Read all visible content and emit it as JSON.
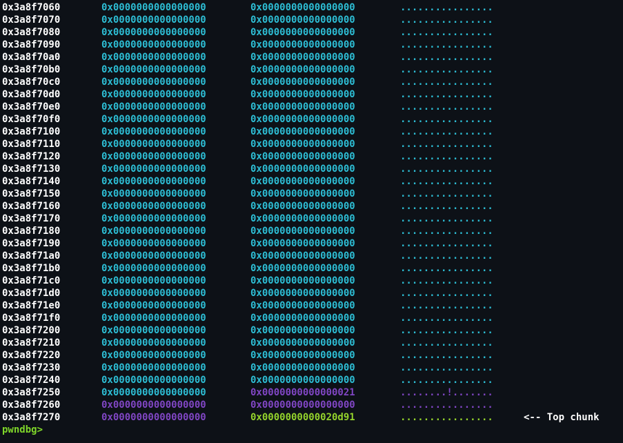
{
  "colors": {
    "background": "#0d1117",
    "address": "#ffffff",
    "cyan": "#2dbdd4",
    "purple": "#8046c4",
    "green": "#94d32c",
    "prompt": "#7fd62a"
  },
  "rows": [
    {
      "addr": "0x3a8f7060",
      "q1": "0x0000000000000000",
      "q2": "0x0000000000000000",
      "ascii": "................",
      "q1c": "cyan",
      "q2c": "cyan",
      "ac": "cyan"
    },
    {
      "addr": "0x3a8f7070",
      "q1": "0x0000000000000000",
      "q2": "0x0000000000000000",
      "ascii": "................",
      "q1c": "cyan",
      "q2c": "cyan",
      "ac": "cyan"
    },
    {
      "addr": "0x3a8f7080",
      "q1": "0x0000000000000000",
      "q2": "0x0000000000000000",
      "ascii": "................",
      "q1c": "cyan",
      "q2c": "cyan",
      "ac": "cyan"
    },
    {
      "addr": "0x3a8f7090",
      "q1": "0x0000000000000000",
      "q2": "0x0000000000000000",
      "ascii": "................",
      "q1c": "cyan",
      "q2c": "cyan",
      "ac": "cyan"
    },
    {
      "addr": "0x3a8f70a0",
      "q1": "0x0000000000000000",
      "q2": "0x0000000000000000",
      "ascii": "................",
      "q1c": "cyan",
      "q2c": "cyan",
      "ac": "cyan"
    },
    {
      "addr": "0x3a8f70b0",
      "q1": "0x0000000000000000",
      "q2": "0x0000000000000000",
      "ascii": "................",
      "q1c": "cyan",
      "q2c": "cyan",
      "ac": "cyan"
    },
    {
      "addr": "0x3a8f70c0",
      "q1": "0x0000000000000000",
      "q2": "0x0000000000000000",
      "ascii": "................",
      "q1c": "cyan",
      "q2c": "cyan",
      "ac": "cyan"
    },
    {
      "addr": "0x3a8f70d0",
      "q1": "0x0000000000000000",
      "q2": "0x0000000000000000",
      "ascii": "................",
      "q1c": "cyan",
      "q2c": "cyan",
      "ac": "cyan"
    },
    {
      "addr": "0x3a8f70e0",
      "q1": "0x0000000000000000",
      "q2": "0x0000000000000000",
      "ascii": "................",
      "q1c": "cyan",
      "q2c": "cyan",
      "ac": "cyan"
    },
    {
      "addr": "0x3a8f70f0",
      "q1": "0x0000000000000000",
      "q2": "0x0000000000000000",
      "ascii": "................",
      "q1c": "cyan",
      "q2c": "cyan",
      "ac": "cyan"
    },
    {
      "addr": "0x3a8f7100",
      "q1": "0x0000000000000000",
      "q2": "0x0000000000000000",
      "ascii": "................",
      "q1c": "cyan",
      "q2c": "cyan",
      "ac": "cyan"
    },
    {
      "addr": "0x3a8f7110",
      "q1": "0x0000000000000000",
      "q2": "0x0000000000000000",
      "ascii": "................",
      "q1c": "cyan",
      "q2c": "cyan",
      "ac": "cyan"
    },
    {
      "addr": "0x3a8f7120",
      "q1": "0x0000000000000000",
      "q2": "0x0000000000000000",
      "ascii": "................",
      "q1c": "cyan",
      "q2c": "cyan",
      "ac": "cyan"
    },
    {
      "addr": "0x3a8f7130",
      "q1": "0x0000000000000000",
      "q2": "0x0000000000000000",
      "ascii": "................",
      "q1c": "cyan",
      "q2c": "cyan",
      "ac": "cyan"
    },
    {
      "addr": "0x3a8f7140",
      "q1": "0x0000000000000000",
      "q2": "0x0000000000000000",
      "ascii": "................",
      "q1c": "cyan",
      "q2c": "cyan",
      "ac": "cyan"
    },
    {
      "addr": "0x3a8f7150",
      "q1": "0x0000000000000000",
      "q2": "0x0000000000000000",
      "ascii": "................",
      "q1c": "cyan",
      "q2c": "cyan",
      "ac": "cyan"
    },
    {
      "addr": "0x3a8f7160",
      "q1": "0x0000000000000000",
      "q2": "0x0000000000000000",
      "ascii": "................",
      "q1c": "cyan",
      "q2c": "cyan",
      "ac": "cyan"
    },
    {
      "addr": "0x3a8f7170",
      "q1": "0x0000000000000000",
      "q2": "0x0000000000000000",
      "ascii": "................",
      "q1c": "cyan",
      "q2c": "cyan",
      "ac": "cyan"
    },
    {
      "addr": "0x3a8f7180",
      "q1": "0x0000000000000000",
      "q2": "0x0000000000000000",
      "ascii": "................",
      "q1c": "cyan",
      "q2c": "cyan",
      "ac": "cyan"
    },
    {
      "addr": "0x3a8f7190",
      "q1": "0x0000000000000000",
      "q2": "0x0000000000000000",
      "ascii": "................",
      "q1c": "cyan",
      "q2c": "cyan",
      "ac": "cyan"
    },
    {
      "addr": "0x3a8f71a0",
      "q1": "0x0000000000000000",
      "q2": "0x0000000000000000",
      "ascii": "................",
      "q1c": "cyan",
      "q2c": "cyan",
      "ac": "cyan"
    },
    {
      "addr": "0x3a8f71b0",
      "q1": "0x0000000000000000",
      "q2": "0x0000000000000000",
      "ascii": "................",
      "q1c": "cyan",
      "q2c": "cyan",
      "ac": "cyan"
    },
    {
      "addr": "0x3a8f71c0",
      "q1": "0x0000000000000000",
      "q2": "0x0000000000000000",
      "ascii": "................",
      "q1c": "cyan",
      "q2c": "cyan",
      "ac": "cyan"
    },
    {
      "addr": "0x3a8f71d0",
      "q1": "0x0000000000000000",
      "q2": "0x0000000000000000",
      "ascii": "................",
      "q1c": "cyan",
      "q2c": "cyan",
      "ac": "cyan"
    },
    {
      "addr": "0x3a8f71e0",
      "q1": "0x0000000000000000",
      "q2": "0x0000000000000000",
      "ascii": "................",
      "q1c": "cyan",
      "q2c": "cyan",
      "ac": "cyan"
    },
    {
      "addr": "0x3a8f71f0",
      "q1": "0x0000000000000000",
      "q2": "0x0000000000000000",
      "ascii": "................",
      "q1c": "cyan",
      "q2c": "cyan",
      "ac": "cyan"
    },
    {
      "addr": "0x3a8f7200",
      "q1": "0x0000000000000000",
      "q2": "0x0000000000000000",
      "ascii": "................",
      "q1c": "cyan",
      "q2c": "cyan",
      "ac": "cyan"
    },
    {
      "addr": "0x3a8f7210",
      "q1": "0x0000000000000000",
      "q2": "0x0000000000000000",
      "ascii": "................",
      "q1c": "cyan",
      "q2c": "cyan",
      "ac": "cyan"
    },
    {
      "addr": "0x3a8f7220",
      "q1": "0x0000000000000000",
      "q2": "0x0000000000000000",
      "ascii": "................",
      "q1c": "cyan",
      "q2c": "cyan",
      "ac": "cyan"
    },
    {
      "addr": "0x3a8f7230",
      "q1": "0x0000000000000000",
      "q2": "0x0000000000000000",
      "ascii": "................",
      "q1c": "cyan",
      "q2c": "cyan",
      "ac": "cyan"
    },
    {
      "addr": "0x3a8f7240",
      "q1": "0x0000000000000000",
      "q2": "0x0000000000000000",
      "ascii": "................",
      "q1c": "cyan",
      "q2c": "cyan",
      "ac": "cyan"
    },
    {
      "addr": "0x3a8f7250",
      "q1": "0x0000000000000000",
      "q2": "0x0000000000000021",
      "ascii": "........!.......",
      "q1c": "cyan",
      "q2c": "purple",
      "ac": "purple"
    },
    {
      "addr": "0x3a8f7260",
      "q1": "0x0000000000000000",
      "q2": "0x0000000000000000",
      "ascii": "................",
      "q1c": "purple",
      "q2c": "purple",
      "ac": "purple"
    },
    {
      "addr": "0x3a8f7270",
      "q1": "0x0000000000000000",
      "q2": "0x0000000000020d91",
      "ascii": "................",
      "q1c": "purple",
      "q2c": "green",
      "ac": "green",
      "note": "<-- Top chunk"
    }
  ],
  "prompt": "pwndbg>"
}
